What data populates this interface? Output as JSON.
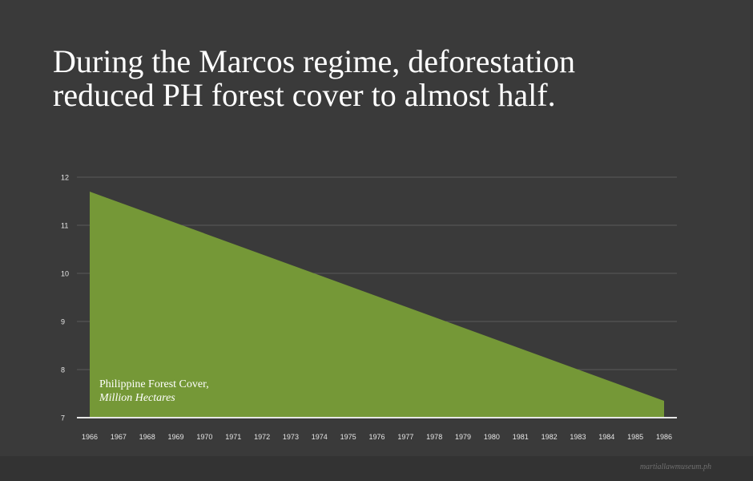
{
  "title_lines": [
    "During the Marcos regime, deforestation",
    "reduced PH forest cover to almost half."
  ],
  "footer": {
    "credit": "martiallawmuseum.ph"
  },
  "colors": {
    "background": "#3a3a3a",
    "area": "#759837",
    "grid": "#5a5a5a",
    "axis": "#e6e6e6",
    "tick_text": "#e6e6e6"
  },
  "chart_data": {
    "type": "area",
    "title": "During the Marcos regime, deforestation reduced PH forest cover to almost half.",
    "series": [
      {
        "name": "Philippine Forest Cover, Million Hectares",
        "x": [
          1966,
          1986
        ],
        "values": [
          11.7,
          7.35
        ]
      }
    ],
    "series_label": {
      "main": "Philippine Forest Cover,",
      "unit": "Million Hectares"
    },
    "x_ticks": [
      "1966",
      "1967",
      "1968",
      "1969",
      "1970",
      "1971",
      "1972",
      "1973",
      "1974",
      "1975",
      "1976",
      "1977",
      "1978",
      "1979",
      "1980",
      "1981",
      "1982",
      "1983",
      "1984",
      "1985",
      "1986"
    ],
    "y_ticks": [
      "7",
      "8",
      "9",
      "10",
      "11",
      "12"
    ],
    "xlim": [
      1966,
      1986
    ],
    "ylim": [
      7,
      12
    ],
    "grid": true,
    "legend": "inside-bottom-left"
  }
}
